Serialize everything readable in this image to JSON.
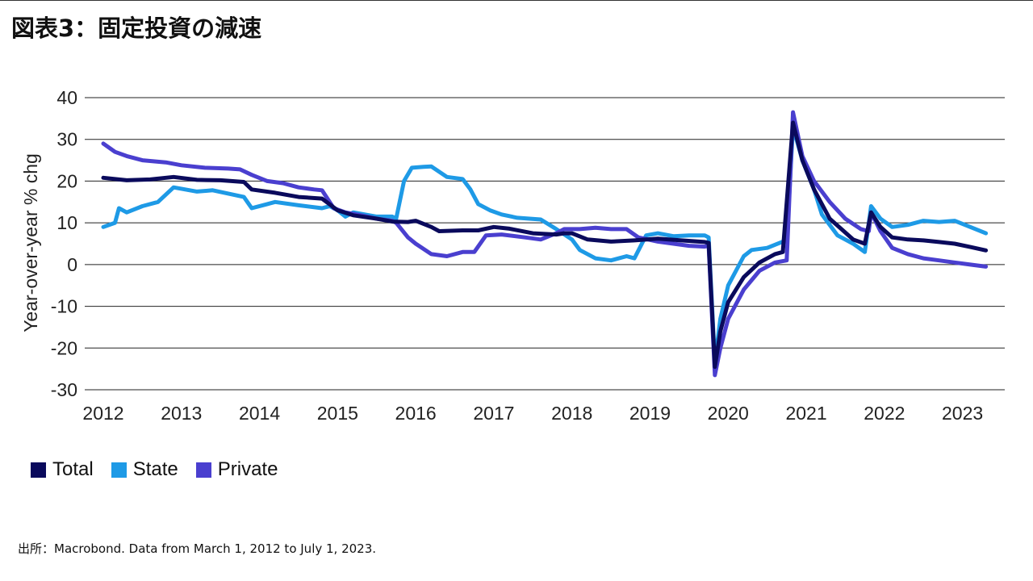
{
  "header": {
    "title": "図表3：固定投資の減速"
  },
  "footer": {
    "source": "出所：Macrobond. Data from March 1, 2012 to July 1, 2023."
  },
  "chart_data": {
    "type": "line",
    "title": "",
    "xlabel": "",
    "ylabel": "Year-over-year % chg",
    "ylim": [
      -30,
      40
    ],
    "yticks": [
      40,
      30,
      20,
      10,
      0,
      -10,
      -20,
      -30
    ],
    "xticks": [
      "2012",
      "2013",
      "2014",
      "2015",
      "2016",
      "2017",
      "2018",
      "2019",
      "2020",
      "2021",
      "2022",
      "2023"
    ],
    "xlim": [
      2012.0,
      2023.5
    ],
    "grid": "horizontal",
    "legend_position": "bottom-left",
    "series": [
      {
        "name": "Total",
        "color": "#0a0a5c",
        "points": [
          [
            2012.0,
            20.8
          ],
          [
            2012.3,
            20.2
          ],
          [
            2012.6,
            20.4
          ],
          [
            2012.9,
            21.0
          ],
          [
            2013.2,
            20.3
          ],
          [
            2013.5,
            20.2
          ],
          [
            2013.8,
            19.8
          ],
          [
            2013.9,
            18.0
          ],
          [
            2014.2,
            17.2
          ],
          [
            2014.5,
            16.2
          ],
          [
            2014.8,
            15.8
          ],
          [
            2015.0,
            13.0
          ],
          [
            2015.2,
            11.8
          ],
          [
            2015.5,
            11.0
          ],
          [
            2015.7,
            10.3
          ],
          [
            2015.9,
            10.2
          ],
          [
            2016.0,
            10.5
          ],
          [
            2016.2,
            9.0
          ],
          [
            2016.3,
            8.0
          ],
          [
            2016.6,
            8.2
          ],
          [
            2016.8,
            8.2
          ],
          [
            2017.0,
            9.0
          ],
          [
            2017.2,
            8.6
          ],
          [
            2017.5,
            7.5
          ],
          [
            2017.8,
            7.2
          ],
          [
            2017.9,
            7.5
          ],
          [
            2018.0,
            7.5
          ],
          [
            2018.2,
            6.0
          ],
          [
            2018.5,
            5.5
          ],
          [
            2018.8,
            5.8
          ],
          [
            2019.1,
            6.2
          ],
          [
            2019.4,
            5.8
          ],
          [
            2019.7,
            5.4
          ],
          [
            2019.75,
            5.2
          ],
          [
            2019.83,
            -24.5
          ],
          [
            2019.9,
            -16.0
          ],
          [
            2020.0,
            -9.0
          ],
          [
            2020.2,
            -3.0
          ],
          [
            2020.4,
            0.5
          ],
          [
            2020.6,
            2.5
          ],
          [
            2020.7,
            3.0
          ],
          [
            2020.83,
            34.0
          ],
          [
            2020.95,
            25.0
          ],
          [
            2021.1,
            18.0
          ],
          [
            2021.3,
            11.0
          ],
          [
            2021.6,
            6.0
          ],
          [
            2021.75,
            5.0
          ],
          [
            2021.83,
            12.5
          ],
          [
            2021.95,
            9.0
          ],
          [
            2022.1,
            6.5
          ],
          [
            2022.3,
            6.0
          ],
          [
            2022.5,
            5.8
          ],
          [
            2022.7,
            5.4
          ],
          [
            2022.9,
            5.0
          ],
          [
            2023.1,
            4.2
          ],
          [
            2023.3,
            3.4
          ]
        ]
      },
      {
        "name": "State",
        "color": "#1e9ae6",
        "points": [
          [
            2012.0,
            9.0
          ],
          [
            2012.15,
            10.0
          ],
          [
            2012.2,
            13.5
          ],
          [
            2012.3,
            12.5
          ],
          [
            2012.5,
            14.0
          ],
          [
            2012.7,
            15.0
          ],
          [
            2012.9,
            18.5
          ],
          [
            2013.2,
            17.5
          ],
          [
            2013.4,
            17.8
          ],
          [
            2013.6,
            17.0
          ],
          [
            2013.8,
            16.2
          ],
          [
            2013.9,
            13.5
          ],
          [
            2014.1,
            14.5
          ],
          [
            2014.2,
            15.0
          ],
          [
            2014.5,
            14.2
          ],
          [
            2014.8,
            13.5
          ],
          [
            2014.9,
            14.0
          ],
          [
            2015.0,
            13.0
          ],
          [
            2015.1,
            11.5
          ],
          [
            2015.2,
            12.5
          ],
          [
            2015.5,
            11.5
          ],
          [
            2015.7,
            11.5
          ],
          [
            2015.75,
            11.0
          ],
          [
            2015.85,
            20.0
          ],
          [
            2015.95,
            23.2
          ],
          [
            2016.1,
            23.4
          ],
          [
            2016.2,
            23.5
          ],
          [
            2016.4,
            21.0
          ],
          [
            2016.6,
            20.5
          ],
          [
            2016.7,
            18.0
          ],
          [
            2016.8,
            14.5
          ],
          [
            2016.95,
            13.0
          ],
          [
            2017.1,
            12.0
          ],
          [
            2017.3,
            11.2
          ],
          [
            2017.6,
            10.8
          ],
          [
            2017.8,
            8.5
          ],
          [
            2018.0,
            6.0
          ],
          [
            2018.1,
            3.5
          ],
          [
            2018.3,
            1.5
          ],
          [
            2018.5,
            1.0
          ],
          [
            2018.7,
            2.0
          ],
          [
            2018.8,
            1.5
          ],
          [
            2018.95,
            7.0
          ],
          [
            2019.1,
            7.5
          ],
          [
            2019.3,
            6.8
          ],
          [
            2019.5,
            7.0
          ],
          [
            2019.7,
            7.0
          ],
          [
            2019.75,
            6.5
          ],
          [
            2019.83,
            -23.5
          ],
          [
            2019.9,
            -13.0
          ],
          [
            2020.0,
            -5.0
          ],
          [
            2020.2,
            2.0
          ],
          [
            2020.3,
            3.5
          ],
          [
            2020.5,
            4.0
          ],
          [
            2020.7,
            5.5
          ],
          [
            2020.75,
            5.5
          ],
          [
            2020.83,
            33.0
          ],
          [
            2020.95,
            25.0
          ],
          [
            2021.1,
            18.0
          ],
          [
            2021.2,
            12.0
          ],
          [
            2021.4,
            7.0
          ],
          [
            2021.6,
            5.0
          ],
          [
            2021.75,
            3.0
          ],
          [
            2021.83,
            14.0
          ],
          [
            2021.95,
            11.0
          ],
          [
            2022.1,
            9.0
          ],
          [
            2022.3,
            9.5
          ],
          [
            2022.5,
            10.5
          ],
          [
            2022.7,
            10.2
          ],
          [
            2022.9,
            10.5
          ],
          [
            2023.1,
            9.0
          ],
          [
            2023.3,
            7.5
          ]
        ]
      },
      {
        "name": "Private",
        "color": "#4a3fcf",
        "points": [
          [
            2012.0,
            29.0
          ],
          [
            2012.15,
            27.0
          ],
          [
            2012.3,
            26.0
          ],
          [
            2012.5,
            25.0
          ],
          [
            2012.8,
            24.5
          ],
          [
            2013.0,
            23.8
          ],
          [
            2013.3,
            23.2
          ],
          [
            2013.6,
            23.0
          ],
          [
            2013.75,
            22.8
          ],
          [
            2013.9,
            21.5
          ],
          [
            2014.1,
            20.0
          ],
          [
            2014.3,
            19.5
          ],
          [
            2014.5,
            18.5
          ],
          [
            2014.7,
            18.0
          ],
          [
            2014.8,
            17.8
          ],
          [
            2014.95,
            13.5
          ],
          [
            2015.1,
            12.5
          ],
          [
            2015.3,
            11.8
          ],
          [
            2015.5,
            11.0
          ],
          [
            2015.7,
            10.5
          ],
          [
            2015.75,
            10.0
          ],
          [
            2015.9,
            6.5
          ],
          [
            2016.0,
            5.0
          ],
          [
            2016.2,
            2.5
          ],
          [
            2016.4,
            2.0
          ],
          [
            2016.6,
            3.0
          ],
          [
            2016.75,
            3.0
          ],
          [
            2016.9,
            7.0
          ],
          [
            2017.1,
            7.2
          ],
          [
            2017.4,
            6.5
          ],
          [
            2017.6,
            6.0
          ],
          [
            2017.8,
            7.5
          ],
          [
            2017.9,
            8.5
          ],
          [
            2018.1,
            8.5
          ],
          [
            2018.3,
            8.8
          ],
          [
            2018.5,
            8.5
          ],
          [
            2018.7,
            8.5
          ],
          [
            2018.85,
            6.5
          ],
          [
            2019.1,
            5.5
          ],
          [
            2019.3,
            5.0
          ],
          [
            2019.5,
            4.5
          ],
          [
            2019.7,
            4.3
          ],
          [
            2019.75,
            4.5
          ],
          [
            2019.83,
            -26.5
          ],
          [
            2019.9,
            -20.0
          ],
          [
            2020.0,
            -13.0
          ],
          [
            2020.2,
            -6.0
          ],
          [
            2020.4,
            -1.5
          ],
          [
            2020.6,
            0.5
          ],
          [
            2020.75,
            1.0
          ],
          [
            2020.83,
            36.5
          ],
          [
            2020.95,
            26.0
          ],
          [
            2021.1,
            20.0
          ],
          [
            2021.3,
            15.0
          ],
          [
            2021.5,
            11.0
          ],
          [
            2021.7,
            8.5
          ],
          [
            2021.8,
            8.0
          ],
          [
            2021.83,
            12.5
          ],
          [
            2021.95,
            8.0
          ],
          [
            2022.1,
            4.0
          ],
          [
            2022.3,
            2.5
          ],
          [
            2022.5,
            1.5
          ],
          [
            2022.7,
            1.0
          ],
          [
            2022.9,
            0.5
          ],
          [
            2023.1,
            0.0
          ],
          [
            2023.3,
            -0.5
          ]
        ]
      }
    ]
  }
}
